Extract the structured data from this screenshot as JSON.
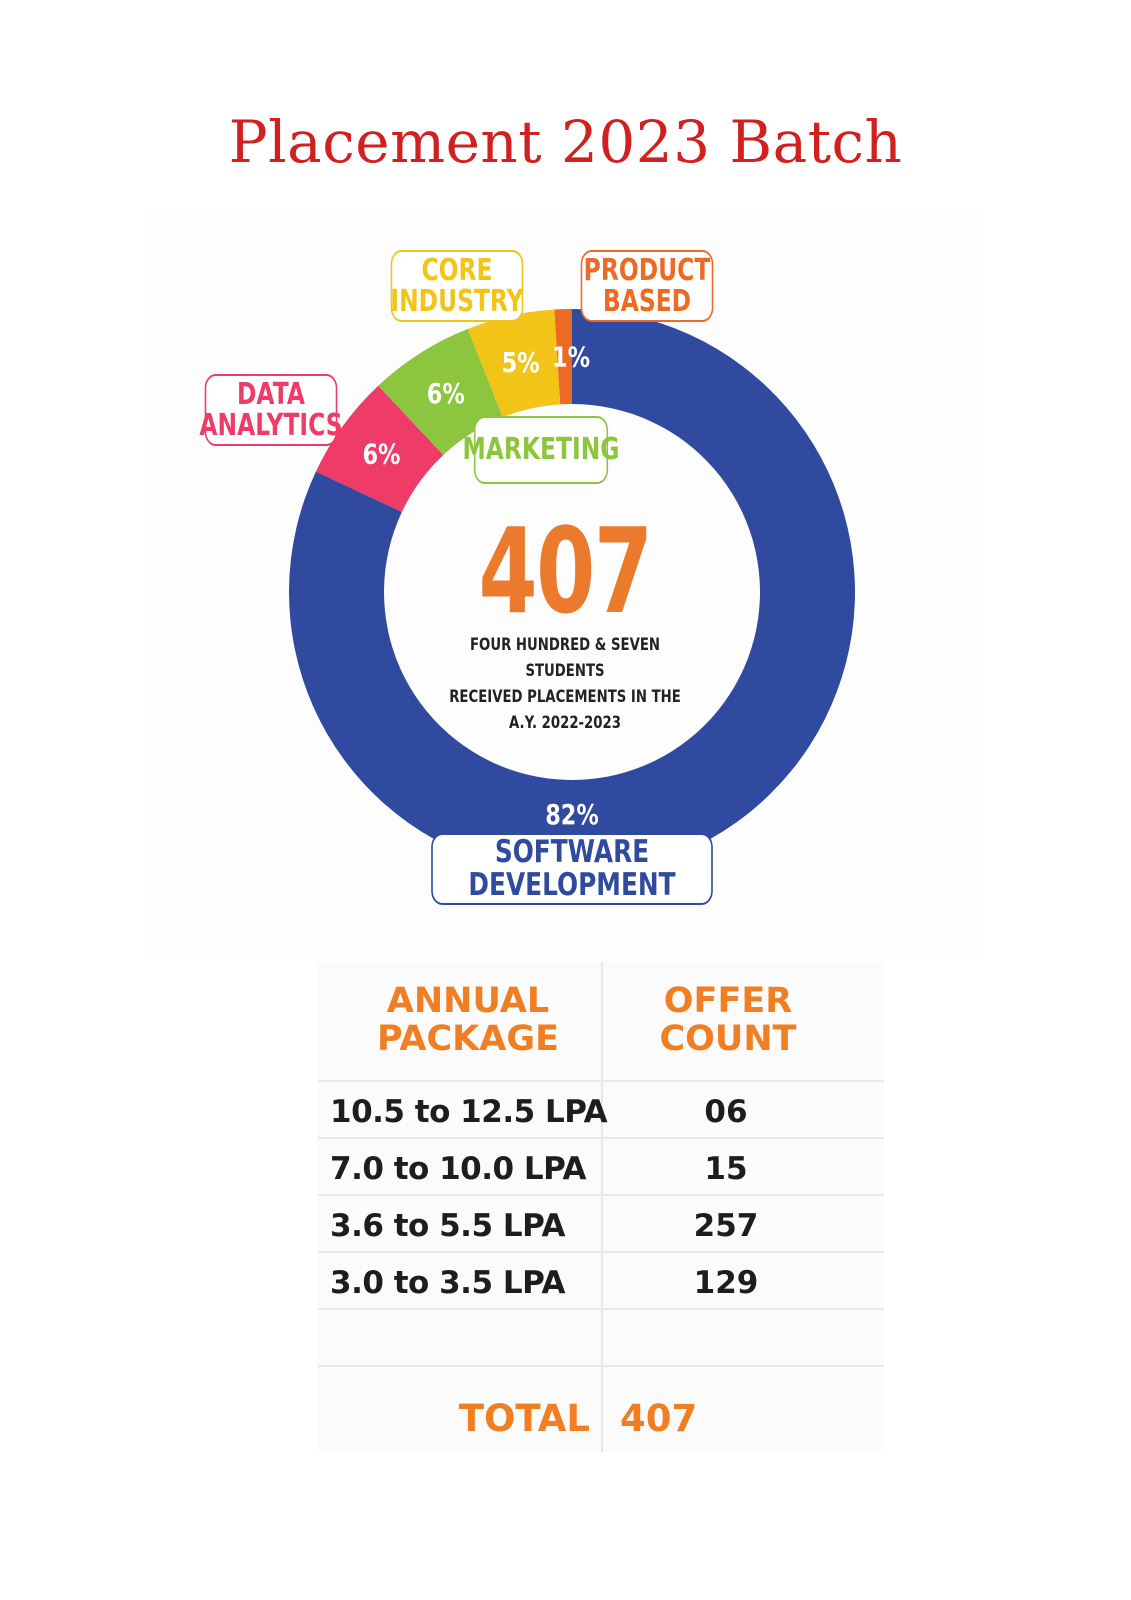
{
  "title": "Placement 2023 Batch",
  "chart_data": [
    {
      "type": "pie",
      "style": "donut",
      "slices": [
        {
          "name": "PRODUCT BASED",
          "value": 1,
          "label": "1%",
          "color": "#ec6b24"
        },
        {
          "name": "SOFTWARE DEVELOPMENT",
          "value": 82,
          "label": "82%",
          "color": "#2f4a9e"
        },
        {
          "name": "DATA ANALYTICS",
          "value": 6,
          "label": "6%",
          "color": "#ee3b67"
        },
        {
          "name": "MARKETING",
          "value": 6,
          "label": "6%",
          "color": "#8cc63e"
        },
        {
          "name": "CORE INDUSTRY",
          "value": 5,
          "label": "5%",
          "color": "#f2c418"
        }
      ],
      "center": {
        "value": "407",
        "caption": "FOUR HUNDRED & SEVEN STUDENTS\nRECEIVED PLACEMENTS IN THE\nA.Y. 2022-2023"
      },
      "callouts": {
        "core": "CORE\nINDUSTRY",
        "product": "PRODUCT\nBASED",
        "data": "DATA\nANALYTICS",
        "marketing": "MARKETING",
        "software": "SOFTWARE DEVELOPMENT"
      }
    },
    {
      "type": "table",
      "columns": [
        "ANNUAL\nPACKAGE",
        "OFFER\nCOUNT"
      ],
      "rows": [
        {
          "range": "10.5 to 12.5 LPA",
          "count": "06"
        },
        {
          "range": "7.0 to 10.0 LPA",
          "count": "15"
        },
        {
          "range": "3.6 to 5.5 LPA",
          "count": "257"
        },
        {
          "range": "3.0 to 3.5 LPA",
          "count": "129"
        },
        {
          "range": "",
          "count": ""
        }
      ],
      "total_label": "TOTAL",
      "total_value": "407"
    }
  ]
}
